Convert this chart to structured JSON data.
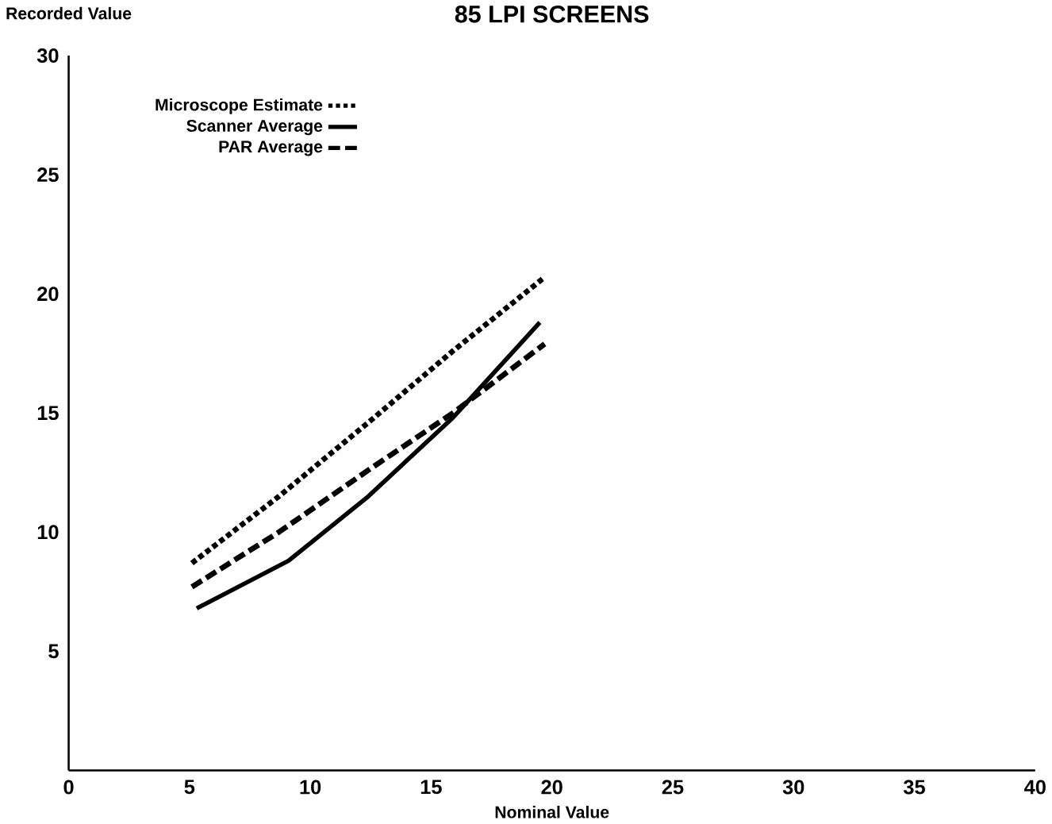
{
  "chart_data": {
    "type": "line",
    "title": "85 LPI SCREENS",
    "xlabel": "Nominal Value",
    "ylabel": "Recorded Value",
    "xlim": [
      0,
      40
    ],
    "ylim": [
      0,
      30
    ],
    "xticks": [
      0,
      5,
      10,
      15,
      20,
      25,
      30,
      35,
      40
    ],
    "yticks": [
      5,
      10,
      15,
      20,
      25,
      30
    ],
    "legend": "top left",
    "grid": false,
    "series": [
      {
        "name": "Microscope Estimate",
        "color": "#000000",
        "line_style": "dotted",
        "x": [
          5.1,
          8.7,
          12.4,
          15.9,
          19.7
        ],
        "values": [
          8.7,
          11.5,
          14.6,
          17.6,
          20.7
        ]
      },
      {
        "name": "Scanner Average",
        "color": "#000000",
        "line_style": "solid",
        "x": [
          5.3,
          9.1,
          12.4,
          15.9,
          19.5
        ],
        "values": [
          6.8,
          8.8,
          11.5,
          14.8,
          18.8
        ]
      },
      {
        "name": "PAR Average",
        "color": "#000000",
        "line_style": "dashed",
        "x": [
          5.1,
          8.7,
          12.4,
          15.9,
          19.7
        ],
        "values": [
          7.7,
          10.0,
          12.6,
          15.0,
          17.9
        ]
      }
    ]
  }
}
